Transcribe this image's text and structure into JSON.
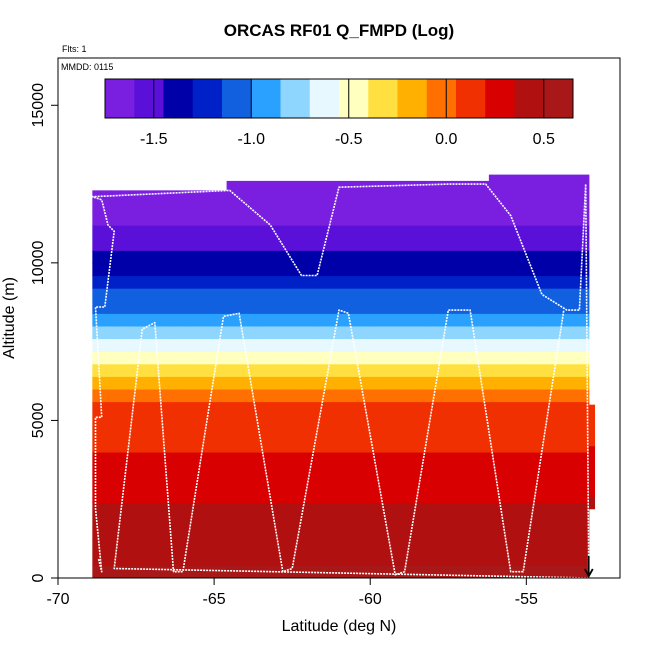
{
  "chart_data": {
    "type": "heatmap",
    "title": "ORCAS RF01 Q_FMPD (Log)",
    "subtitle_left": "Flts: 1",
    "annotation": "MMDD: 0115",
    "xlabel": "Latitude (deg N)",
    "ylabel": "Altitude (m)",
    "xlim": [
      -70,
      -52
    ],
    "ylim": [
      0,
      16500
    ],
    "x_ticks": [
      -70,
      -65,
      -60,
      -55
    ],
    "x_tick_labels": [
      "-70",
      "-65",
      "-60",
      "-55"
    ],
    "y_ticks": [
      0,
      5000,
      10000,
      15000
    ],
    "y_tick_labels": [
      "0",
      "5000",
      "10000",
      "15000"
    ],
    "colorbar": {
      "range": [
        -1.75,
        0.65
      ],
      "ticks": [
        -1.5,
        -1.0,
        -0.5,
        0.0,
        0.5
      ],
      "tick_labels": [
        "-1.5",
        "-1.0",
        "-0.5",
        "0.0",
        "0.5"
      ],
      "dividers": [
        -1.5,
        -1.0,
        -0.5,
        0.0,
        0.5
      ],
      "colors": [
        "#7a1fe0",
        "#5a10d8",
        "#0000a8",
        "#0020c8",
        "#1060e0",
        "#2aa0ff",
        "#8fd6ff",
        "#e8f8ff",
        "#ffffc0",
        "#ffe040",
        "#ffb000",
        "#ff7000",
        "#f03000",
        "#d80000",
        "#b01010",
        "#a81818"
      ]
    },
    "heatmap_extent": {
      "lat_start": -68.9,
      "lat_end": -53.0,
      "top_altitude_segments": [
        {
          "lat": [
            -68.9,
            -64.6
          ],
          "top": 12300
        },
        {
          "lat": [
            -64.6,
            -56.2
          ],
          "top": 12600
        },
        {
          "lat": [
            -56.2,
            -53.0
          ],
          "top": 12800
        }
      ],
      "right_strip": {
        "lat": [
          -53.0,
          -52.8
        ],
        "alt": [
          2200,
          5500
        ]
      }
    },
    "value_profile": [
      {
        "alt": 0,
        "value": 0.55
      },
      {
        "alt": 1000,
        "value": 0.45
      },
      {
        "alt": 2500,
        "value": 0.35
      },
      {
        "alt": 4000,
        "value": 0.2
      },
      {
        "alt": 5500,
        "value": 0.05
      },
      {
        "alt": 6500,
        "value": -0.25
      },
      {
        "alt": 7500,
        "value": -0.7
      },
      {
        "alt": 8500,
        "value": -1.0
      },
      {
        "alt": 9500,
        "value": -1.3
      },
      {
        "alt": 10500,
        "value": -1.5
      },
      {
        "alt": 11500,
        "value": -1.65
      },
      {
        "alt": 12800,
        "value": -1.75
      }
    ],
    "flight_track": {
      "color": "#ffffff",
      "points": [
        [
          -68.7,
          600
        ],
        [
          -68.6,
          200
        ],
        [
          -68.8,
          2200
        ],
        [
          -68.8,
          5100
        ],
        [
          -68.6,
          5100
        ],
        [
          -68.8,
          8600
        ],
        [
          -68.5,
          8600
        ],
        [
          -68.2,
          11000
        ],
        [
          -68.4,
          11200
        ],
        [
          -68.6,
          12000
        ],
        [
          -68.9,
          12100
        ],
        [
          -64.5,
          12300
        ],
        [
          -63.2,
          11200
        ],
        [
          -62.2,
          9600
        ],
        [
          -61.7,
          9600
        ],
        [
          -61.0,
          12400
        ],
        [
          -57.5,
          12500
        ],
        [
          -56.3,
          12500
        ],
        [
          -55.5,
          11500
        ],
        [
          -54.5,
          9000
        ],
        [
          -53.7,
          8500
        ],
        [
          -53.3,
          8500
        ],
        [
          -53.1,
          12500
        ],
        [
          -53.0,
          0
        ],
        [
          -68.2,
          300
        ],
        [
          -67.3,
          7900
        ],
        [
          -66.9,
          8100
        ],
        [
          -66.3,
          200
        ],
        [
          -66.0,
          200
        ],
        [
          -64.7,
          8300
        ],
        [
          -64.2,
          8400
        ],
        [
          -62.8,
          200
        ],
        [
          -62.5,
          300
        ],
        [
          -61.0,
          8500
        ],
        [
          -60.7,
          8400
        ],
        [
          -59.2,
          100
        ],
        [
          -58.9,
          200
        ],
        [
          -57.5,
          8500
        ],
        [
          -56.8,
          8500
        ],
        [
          -55.5,
          200
        ],
        [
          -55.1,
          200
        ],
        [
          -53.8,
          8500
        ]
      ]
    }
  }
}
